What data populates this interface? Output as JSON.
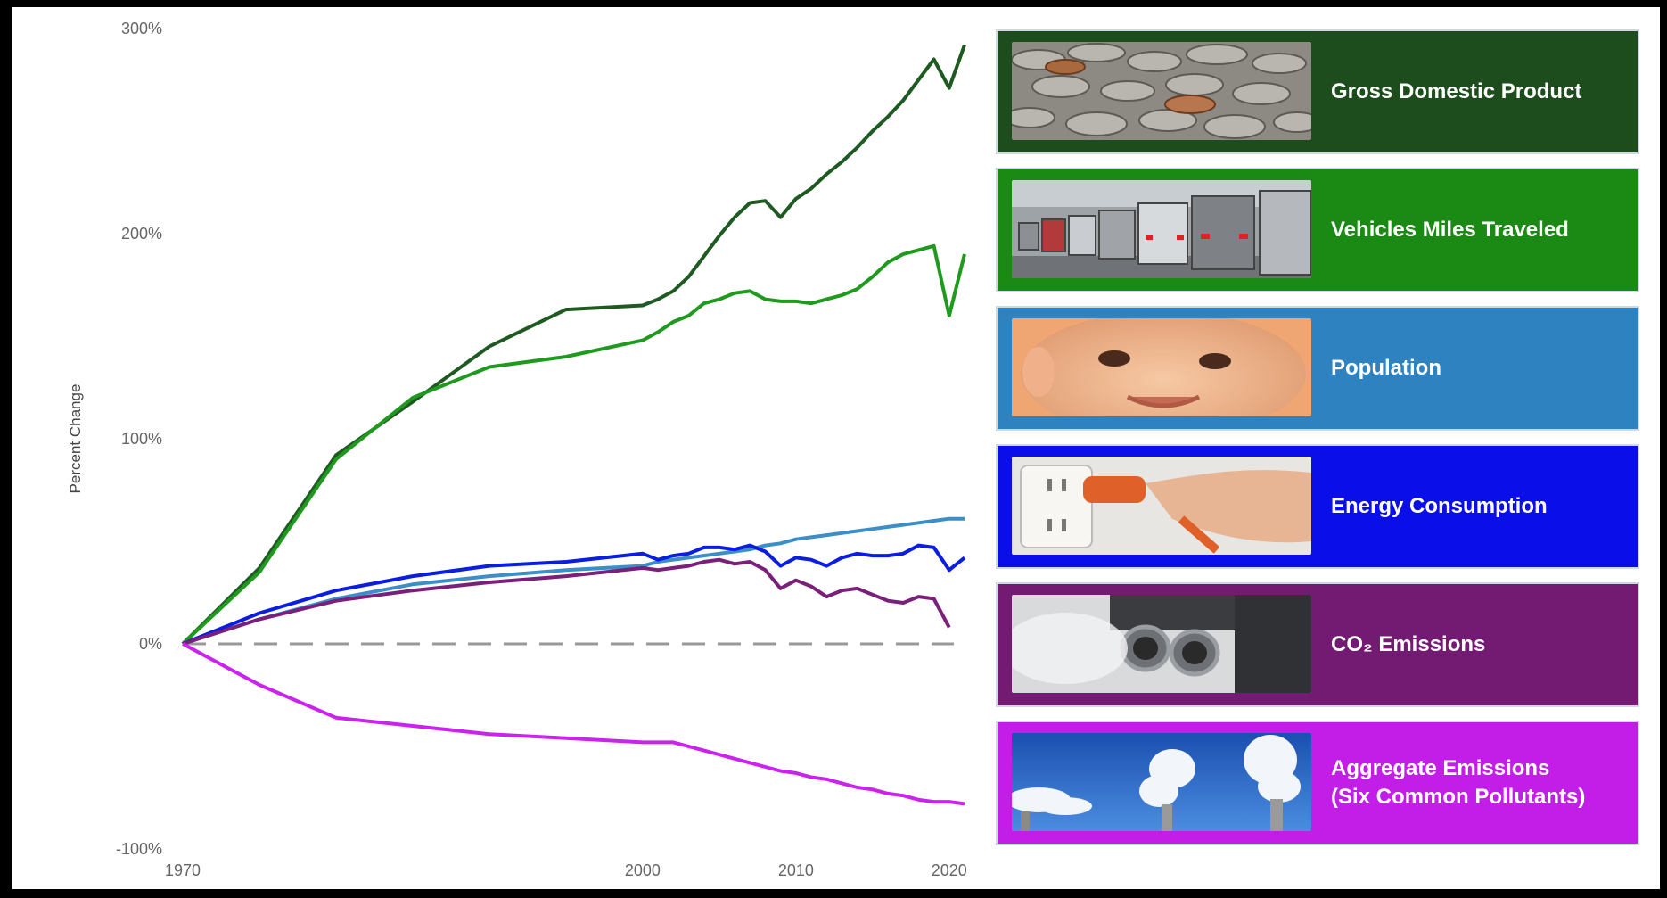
{
  "chart_data": {
    "type": "line",
    "ylabel": "Percent Change",
    "xlabel": "",
    "xlim": [
      1970,
      2021
    ],
    "ylim": [
      -100,
      300
    ],
    "x_ticks": [
      "1970",
      "2000",
      "2010",
      "2020"
    ],
    "y_ticks": [
      "300%",
      "200%",
      "100%",
      "0%",
      "-100%"
    ],
    "grid": false,
    "baseline": 0,
    "series": [
      {
        "name": "Gross Domestic Product",
        "color": "#1e5a22",
        "x": [
          1970,
          1975,
          1980,
          1985,
          1990,
          1995,
          2000,
          2001,
          2002,
          2003,
          2004,
          2005,
          2006,
          2007,
          2008,
          2009,
          2010,
          2011,
          2012,
          2013,
          2014,
          2015,
          2016,
          2017,
          2018,
          2019,
          2020,
          2021
        ],
        "y": [
          0,
          37,
          92,
          118,
          145,
          163,
          165,
          168,
          172,
          179,
          189,
          199,
          208,
          215,
          216,
          208,
          217,
          222,
          229,
          235,
          242,
          250,
          257,
          265,
          275,
          285,
          271,
          292
        ]
      },
      {
        "name": "Vehicles Miles Traveled",
        "color": "#1f9a1f",
        "x": [
          1970,
          1975,
          1980,
          1985,
          1990,
          1995,
          2000,
          2001,
          2002,
          2003,
          2004,
          2005,
          2006,
          2007,
          2008,
          2009,
          2010,
          2011,
          2012,
          2013,
          2014,
          2015,
          2016,
          2017,
          2018,
          2019,
          2020,
          2021
        ],
        "y": [
          0,
          35,
          90,
          120,
          135,
          140,
          148,
          152,
          157,
          160,
          166,
          168,
          171,
          172,
          168,
          167,
          167,
          166,
          168,
          170,
          173,
          179,
          186,
          190,
          192,
          194,
          160,
          190
        ]
      },
      {
        "name": "Population",
        "color": "#3b8fc6",
        "x": [
          1970,
          1975,
          1980,
          1985,
          1990,
          1995,
          2000,
          2001,
          2002,
          2003,
          2004,
          2005,
          2006,
          2007,
          2008,
          2009,
          2010,
          2011,
          2012,
          2013,
          2014,
          2015,
          2016,
          2017,
          2018,
          2019,
          2020,
          2021
        ],
        "y": [
          0,
          12,
          22,
          29,
          33,
          36,
          38,
          40,
          41,
          42,
          43,
          44,
          45,
          46,
          48,
          49,
          51,
          52,
          53,
          54,
          55,
          56,
          57,
          58,
          59,
          60,
          61,
          61
        ]
      },
      {
        "name": "Energy Consumption",
        "color": "#0a1ee0",
        "x": [
          1970,
          1975,
          1980,
          1985,
          1990,
          1995,
          2000,
          2001,
          2002,
          2003,
          2004,
          2005,
          2006,
          2007,
          2008,
          2009,
          2010,
          2011,
          2012,
          2013,
          2014,
          2015,
          2016,
          2017,
          2018,
          2019,
          2020,
          2021
        ],
        "y": [
          0,
          15,
          26,
          33,
          38,
          40,
          44,
          41,
          43,
          44,
          47,
          47,
          46,
          48,
          45,
          38,
          42,
          41,
          38,
          42,
          44,
          43,
          43,
          44,
          48,
          47,
          36,
          42
        ]
      },
      {
        "name": "CO2 Emissions",
        "color": "#7a1f7a",
        "x": [
          1970,
          1975,
          1980,
          1985,
          1990,
          1995,
          2000,
          2001,
          2002,
          2003,
          2004,
          2005,
          2006,
          2007,
          2008,
          2009,
          2010,
          2011,
          2012,
          2013,
          2014,
          2015,
          2016,
          2017,
          2018,
          2019,
          2020
        ],
        "y": [
          0,
          12,
          21,
          26,
          30,
          33,
          37,
          36,
          37,
          38,
          40,
          41,
          39,
          40,
          36,
          27,
          31,
          28,
          23,
          26,
          27,
          24,
          21,
          20,
          23,
          22,
          8
        ]
      },
      {
        "name": "Aggregate Emissions (Six Common Pollutants)",
        "color": "#cc22ee",
        "x": [
          1970,
          1975,
          1980,
          1985,
          1990,
          1995,
          2000,
          2001,
          2002,
          2003,
          2004,
          2005,
          2006,
          2007,
          2008,
          2009,
          2010,
          2011,
          2012,
          2013,
          2014,
          2015,
          2016,
          2017,
          2018,
          2019,
          2020,
          2021
        ],
        "y": [
          0,
          -20,
          -36,
          -40,
          -44,
          -46,
          -48,
          -48,
          -48,
          -50,
          -52,
          -54,
          -56,
          -58,
          -60,
          -62,
          -63,
          -65,
          -66,
          -68,
          -70,
          -71,
          -73,
          -74,
          -76,
          -77,
          -77,
          -78
        ]
      }
    ]
  },
  "legend_panels": [
    {
      "label": "Gross Domestic Product",
      "bg": "#1d4d1d",
      "image": "coins-photo"
    },
    {
      "label": "Vehicles Miles Traveled",
      "bg": "#1a8a14",
      "image": "traffic-photo"
    },
    {
      "label": "Population",
      "bg": "#2f82c0",
      "image": "baby-photo"
    },
    {
      "label": "Energy Consumption",
      "bg": "#0a0ee8",
      "image": "plug-outlet-photo"
    },
    {
      "label": "CO₂ Emissions",
      "bg": "#731a73",
      "image": "exhaust-pipe-photo"
    },
    {
      "label": "Aggregate Emissions\n(Six Common Pollutants)",
      "bg": "#c21ee8",
      "image": "smokestacks-photo"
    }
  ]
}
